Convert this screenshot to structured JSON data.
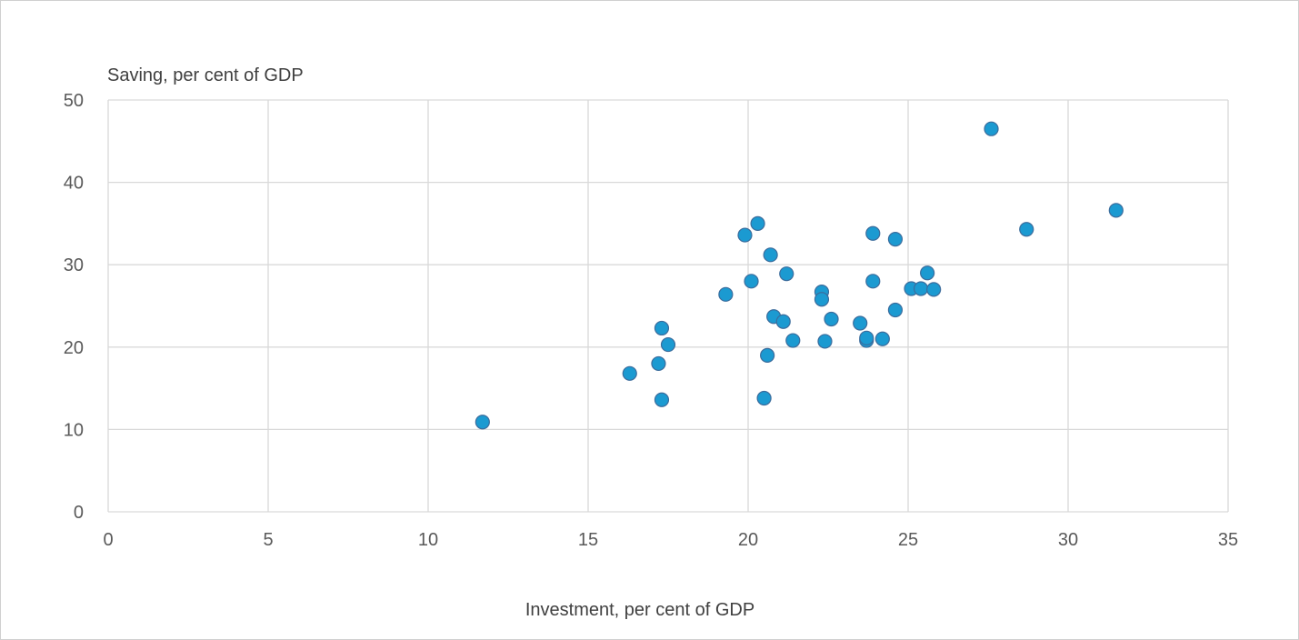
{
  "chart_data": {
    "type": "scatter",
    "title": "",
    "xlabel": "Investment, per cent of GDP",
    "ylabel": "Saving, per cent of GDP",
    "xlim": [
      0,
      35
    ],
    "ylim": [
      0,
      50
    ],
    "x_ticks": [
      0,
      5,
      10,
      15,
      20,
      25,
      30,
      35
    ],
    "y_ticks": [
      0,
      10,
      20,
      30,
      40,
      50
    ],
    "grid": true,
    "legend": "none",
    "marker_color": "#1b9ad1",
    "marker_edge_color": "#3b6c9c",
    "grid_color": "#d9d9d9",
    "points": [
      {
        "x": 11.7,
        "y": 10.9
      },
      {
        "x": 16.3,
        "y": 16.8
      },
      {
        "x": 17.2,
        "y": 18.0
      },
      {
        "x": 17.3,
        "y": 22.3
      },
      {
        "x": 17.3,
        "y": 13.6
      },
      {
        "x": 17.5,
        "y": 20.3
      },
      {
        "x": 19.3,
        "y": 26.4
      },
      {
        "x": 19.9,
        "y": 33.6
      },
      {
        "x": 20.1,
        "y": 28.0
      },
      {
        "x": 20.3,
        "y": 35.0
      },
      {
        "x": 20.5,
        "y": 13.8
      },
      {
        "x": 20.6,
        "y": 19.0
      },
      {
        "x": 20.7,
        "y": 31.2
      },
      {
        "x": 20.8,
        "y": 23.7
      },
      {
        "x": 21.1,
        "y": 23.1
      },
      {
        "x": 21.2,
        "y": 28.9
      },
      {
        "x": 21.4,
        "y": 20.8
      },
      {
        "x": 22.3,
        "y": 26.7
      },
      {
        "x": 22.3,
        "y": 25.8
      },
      {
        "x": 22.4,
        "y": 20.7
      },
      {
        "x": 22.6,
        "y": 23.4
      },
      {
        "x": 23.5,
        "y": 22.9
      },
      {
        "x": 23.7,
        "y": 20.8
      },
      {
        "x": 23.7,
        "y": 21.1
      },
      {
        "x": 23.9,
        "y": 33.8
      },
      {
        "x": 23.9,
        "y": 28.0
      },
      {
        "x": 24.2,
        "y": 21.0
      },
      {
        "x": 24.6,
        "y": 33.1
      },
      {
        "x": 24.6,
        "y": 24.5
      },
      {
        "x": 25.1,
        "y": 27.1
      },
      {
        "x": 25.4,
        "y": 27.1
      },
      {
        "x": 25.6,
        "y": 29.0
      },
      {
        "x": 25.8,
        "y": 27.0
      },
      {
        "x": 27.6,
        "y": 46.5
      },
      {
        "x": 28.7,
        "y": 34.3
      },
      {
        "x": 31.5,
        "y": 36.6
      }
    ]
  }
}
